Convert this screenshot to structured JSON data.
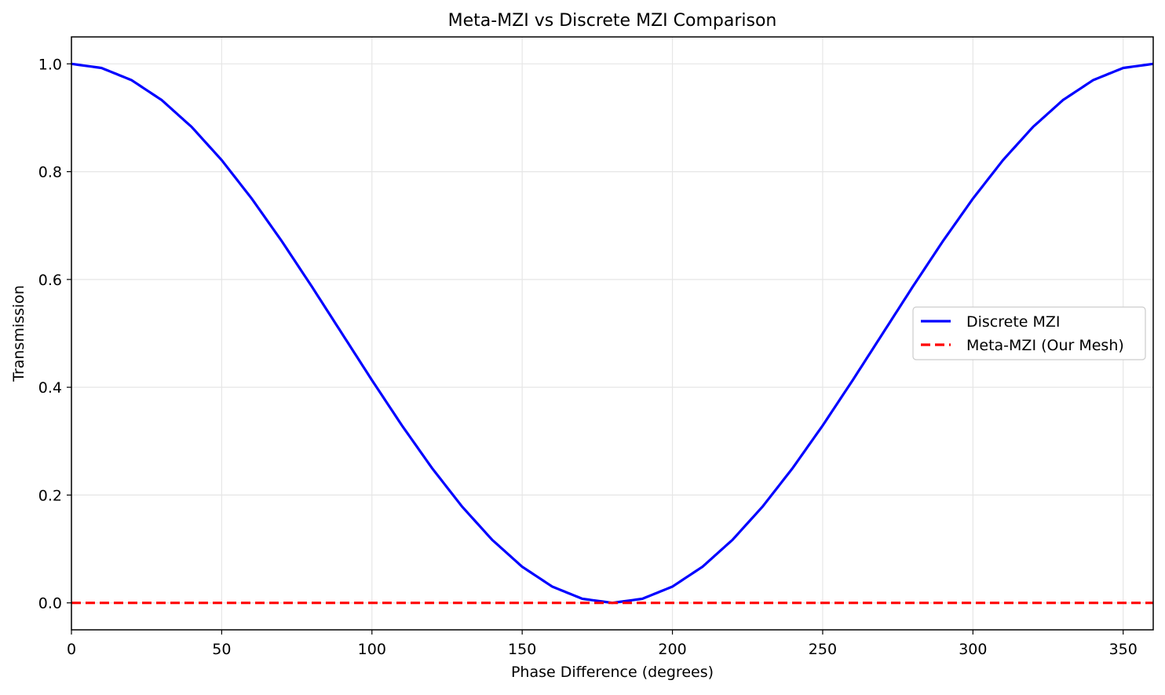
{
  "chart_data": {
    "type": "line",
    "title": "Meta-MZI vs Discrete MZI Comparison",
    "xlabel": "Phase Difference (degrees)",
    "ylabel": "Transmission",
    "xlim": [
      0,
      360
    ],
    "ylim": [
      -0.05,
      1.05
    ],
    "x_ticks": [
      0,
      50,
      100,
      150,
      200,
      250,
      300,
      350
    ],
    "x_tick_labels": [
      "0",
      "50",
      "100",
      "150",
      "200",
      "250",
      "300",
      "350"
    ],
    "y_ticks": [
      0.0,
      0.2,
      0.4,
      0.6,
      0.8,
      1.0
    ],
    "y_tick_labels": [
      "0.0",
      "0.2",
      "0.4",
      "0.6",
      "0.8",
      "1.0"
    ],
    "grid": true,
    "legend_position": "center-right",
    "x": [
      0,
      10,
      20,
      30,
      40,
      50,
      60,
      70,
      80,
      90,
      100,
      110,
      120,
      130,
      140,
      150,
      160,
      170,
      180,
      190,
      200,
      210,
      220,
      230,
      240,
      250,
      260,
      270,
      280,
      290,
      300,
      310,
      320,
      330,
      340,
      350,
      360
    ],
    "series": [
      {
        "name": "Discrete MZI",
        "color": "#0000ff",
        "style": "solid",
        "values": [
          1.0,
          0.9924,
          0.9698,
          0.933,
          0.883,
          0.8214,
          0.75,
          0.671,
          0.5868,
          0.5,
          0.4132,
          0.329,
          0.25,
          0.1786,
          0.117,
          0.067,
          0.0302,
          0.0076,
          0.0,
          0.0076,
          0.0302,
          0.067,
          0.117,
          0.1786,
          0.25,
          0.329,
          0.4132,
          0.5,
          0.5868,
          0.671,
          0.75,
          0.8214,
          0.883,
          0.933,
          0.9698,
          0.9924,
          1.0
        ]
      },
      {
        "name": "Meta-MZI (Our Mesh)",
        "color": "#ff0000",
        "style": "dashed",
        "values": [
          0,
          0,
          0,
          0,
          0,
          0,
          0,
          0,
          0,
          0,
          0,
          0,
          0,
          0,
          0,
          0,
          0,
          0,
          0,
          0,
          0,
          0,
          0,
          0,
          0,
          0,
          0,
          0,
          0,
          0,
          0,
          0,
          0,
          0,
          0,
          0,
          0
        ]
      }
    ]
  }
}
